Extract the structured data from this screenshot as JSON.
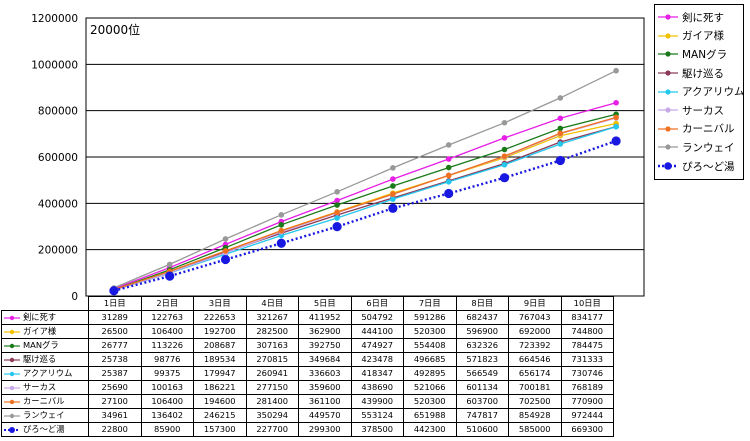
{
  "chart_data": {
    "type": "line",
    "annotation": "20000位",
    "categories": [
      "1日目",
      "2日目",
      "3日目",
      "4日目",
      "5日目",
      "6日目",
      "7日目",
      "8日目",
      "9日目",
      "10日目"
    ],
    "yticks": [
      "0",
      "200000",
      "400000",
      "600000",
      "800000",
      "1000000",
      "1200000"
    ],
    "ylim": [
      0,
      1200000
    ],
    "grid": true,
    "legend_position": "right",
    "series": [
      {
        "name": "剣に死す",
        "color": "#e61ee6",
        "dotted": false,
        "values": [
          31289,
          122763,
          222653,
          321267,
          411952,
          504792,
          591286,
          682437,
          767043,
          834177
        ]
      },
      {
        "name": "ガイア様",
        "color": "#f2c200",
        "dotted": false,
        "values": [
          26500,
          106400,
          192700,
          282500,
          362900,
          444100,
          520300,
          596900,
          692000,
          744800
        ]
      },
      {
        "name": "MANグラ",
        "color": "#1a7a1a",
        "dotted": false,
        "values": [
          26777,
          113226,
          208687,
          307163,
          392750,
          474927,
          554408,
          632326,
          723392,
          784475
        ]
      },
      {
        "name": "駆け巡る",
        "color": "#8c3a5a",
        "dotted": false,
        "values": [
          25738,
          98776,
          189534,
          270815,
          349684,
          423478,
          496685,
          571823,
          664546,
          731333
        ]
      },
      {
        "name": "アクアリウム",
        "color": "#22c8ee",
        "dotted": false,
        "values": [
          25387,
          99375,
          179947,
          260941,
          336603,
          418347,
          492895,
          566549,
          656174,
          730746
        ]
      },
      {
        "name": "サーカス",
        "color": "#c8a8e8",
        "dotted": false,
        "values": [
          25690,
          100163,
          186221,
          277150,
          359600,
          438690,
          521066,
          601134,
          700181,
          768189
        ]
      },
      {
        "name": "カーニバル",
        "color": "#f07020",
        "dotted": false,
        "values": [
          27100,
          106400,
          194600,
          281400,
          361100,
          439900,
          520300,
          603700,
          702500,
          770900
        ]
      },
      {
        "name": "ランウェイ",
        "color": "#999999",
        "dotted": false,
        "values": [
          34961,
          136402,
          246215,
          350294,
          449570,
          553124,
          651988,
          747817,
          854928,
          972444
        ]
      },
      {
        "name": "ぴろ～ど湯",
        "color": "#1818e0",
        "dotted": true,
        "values": [
          22800,
          85900,
          157300,
          227700,
          299300,
          378500,
          442300,
          510600,
          585000,
          669300
        ]
      }
    ]
  }
}
